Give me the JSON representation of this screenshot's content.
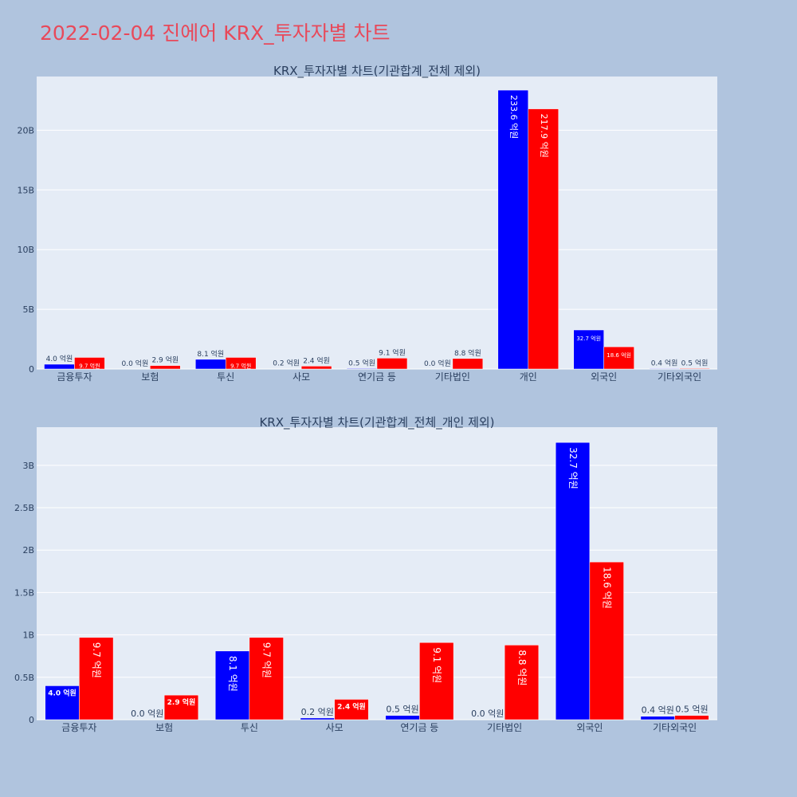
{
  "page": {
    "title": "2022-02-04 진에어 KRX_투자자별 차트",
    "background": "#b0c4de",
    "title_color": "#e8495a"
  },
  "colors": {
    "series_a": "#0000ff",
    "series_b": "#ff0000",
    "plot_bg": "#e5ecf6",
    "grid": "#ffffff",
    "text": "#2a3f5f"
  },
  "chart_data": [
    {
      "type": "bar",
      "title": "KRX_투자자별 차트(기관합계_전체 제외)",
      "categories": [
        "금융투자",
        "보험",
        "투신",
        "사모",
        "연기금 등",
        "기타법인",
        "개인",
        "외국인",
        "기타외국인"
      ],
      "series": [
        {
          "values": [
            0.4,
            0.0,
            0.81,
            0.02,
            0.05,
            0.0,
            23.36,
            3.27,
            0.04
          ],
          "labels": [
            "4.0 억원",
            "0.0 억원",
            "8.1 억원",
            "0.2 억원",
            "0.5 억원",
            "0.0 억원",
            "233.6 억원",
            "32.7 억원",
            "0.4 억원"
          ]
        },
        {
          "values": [
            0.97,
            0.29,
            0.97,
            0.24,
            0.91,
            0.88,
            21.79,
            1.86,
            0.05
          ],
          "labels": [
            "9.7 억원",
            "2.9 억원",
            "9.7 억원",
            "2.4 억원",
            "9.1 억원",
            "8.8 억원",
            "217.9 억원",
            "18.6 억원",
            "0.5 억원"
          ]
        }
      ],
      "ylim": [
        0,
        24.5
      ],
      "yticks": [
        0,
        5,
        10,
        15,
        20
      ],
      "ytick_labels": [
        "0",
        "5B",
        "10B",
        "15B",
        "20B"
      ],
      "grid": true
    },
    {
      "type": "bar",
      "title": "KRX_투자자별 차트(기관합계_전체_개인 제외)",
      "categories": [
        "금융투자",
        "보험",
        "투신",
        "사모",
        "연기금 등",
        "기타법인",
        "외국인",
        "기타외국인"
      ],
      "series": [
        {
          "values": [
            0.4,
            0.0,
            0.81,
            0.02,
            0.05,
            0.0,
            3.27,
            0.04
          ],
          "labels": [
            "4.0 억원",
            "0.0 억원",
            "8.1 억원",
            "0.2 억원",
            "0.5 억원",
            "0.0 억원",
            "32.7 억원",
            "0.4 억원"
          ]
        },
        {
          "values": [
            0.97,
            0.29,
            0.97,
            0.24,
            0.91,
            0.88,
            1.86,
            0.05
          ],
          "labels": [
            "9.7 억원",
            "2.9 억원",
            "9.7 억원",
            "2.4 억원",
            "9.1 억원",
            "8.8 억원",
            "18.6 억원",
            "0.5 억원"
          ]
        }
      ],
      "ylim": [
        0,
        3.45
      ],
      "yticks": [
        0,
        0.5,
        1,
        1.5,
        2,
        2.5,
        3
      ],
      "ytick_labels": [
        "0",
        "0.5B",
        "1B",
        "1.5B",
        "2B",
        "2.5B",
        "3B"
      ],
      "grid": true
    }
  ]
}
